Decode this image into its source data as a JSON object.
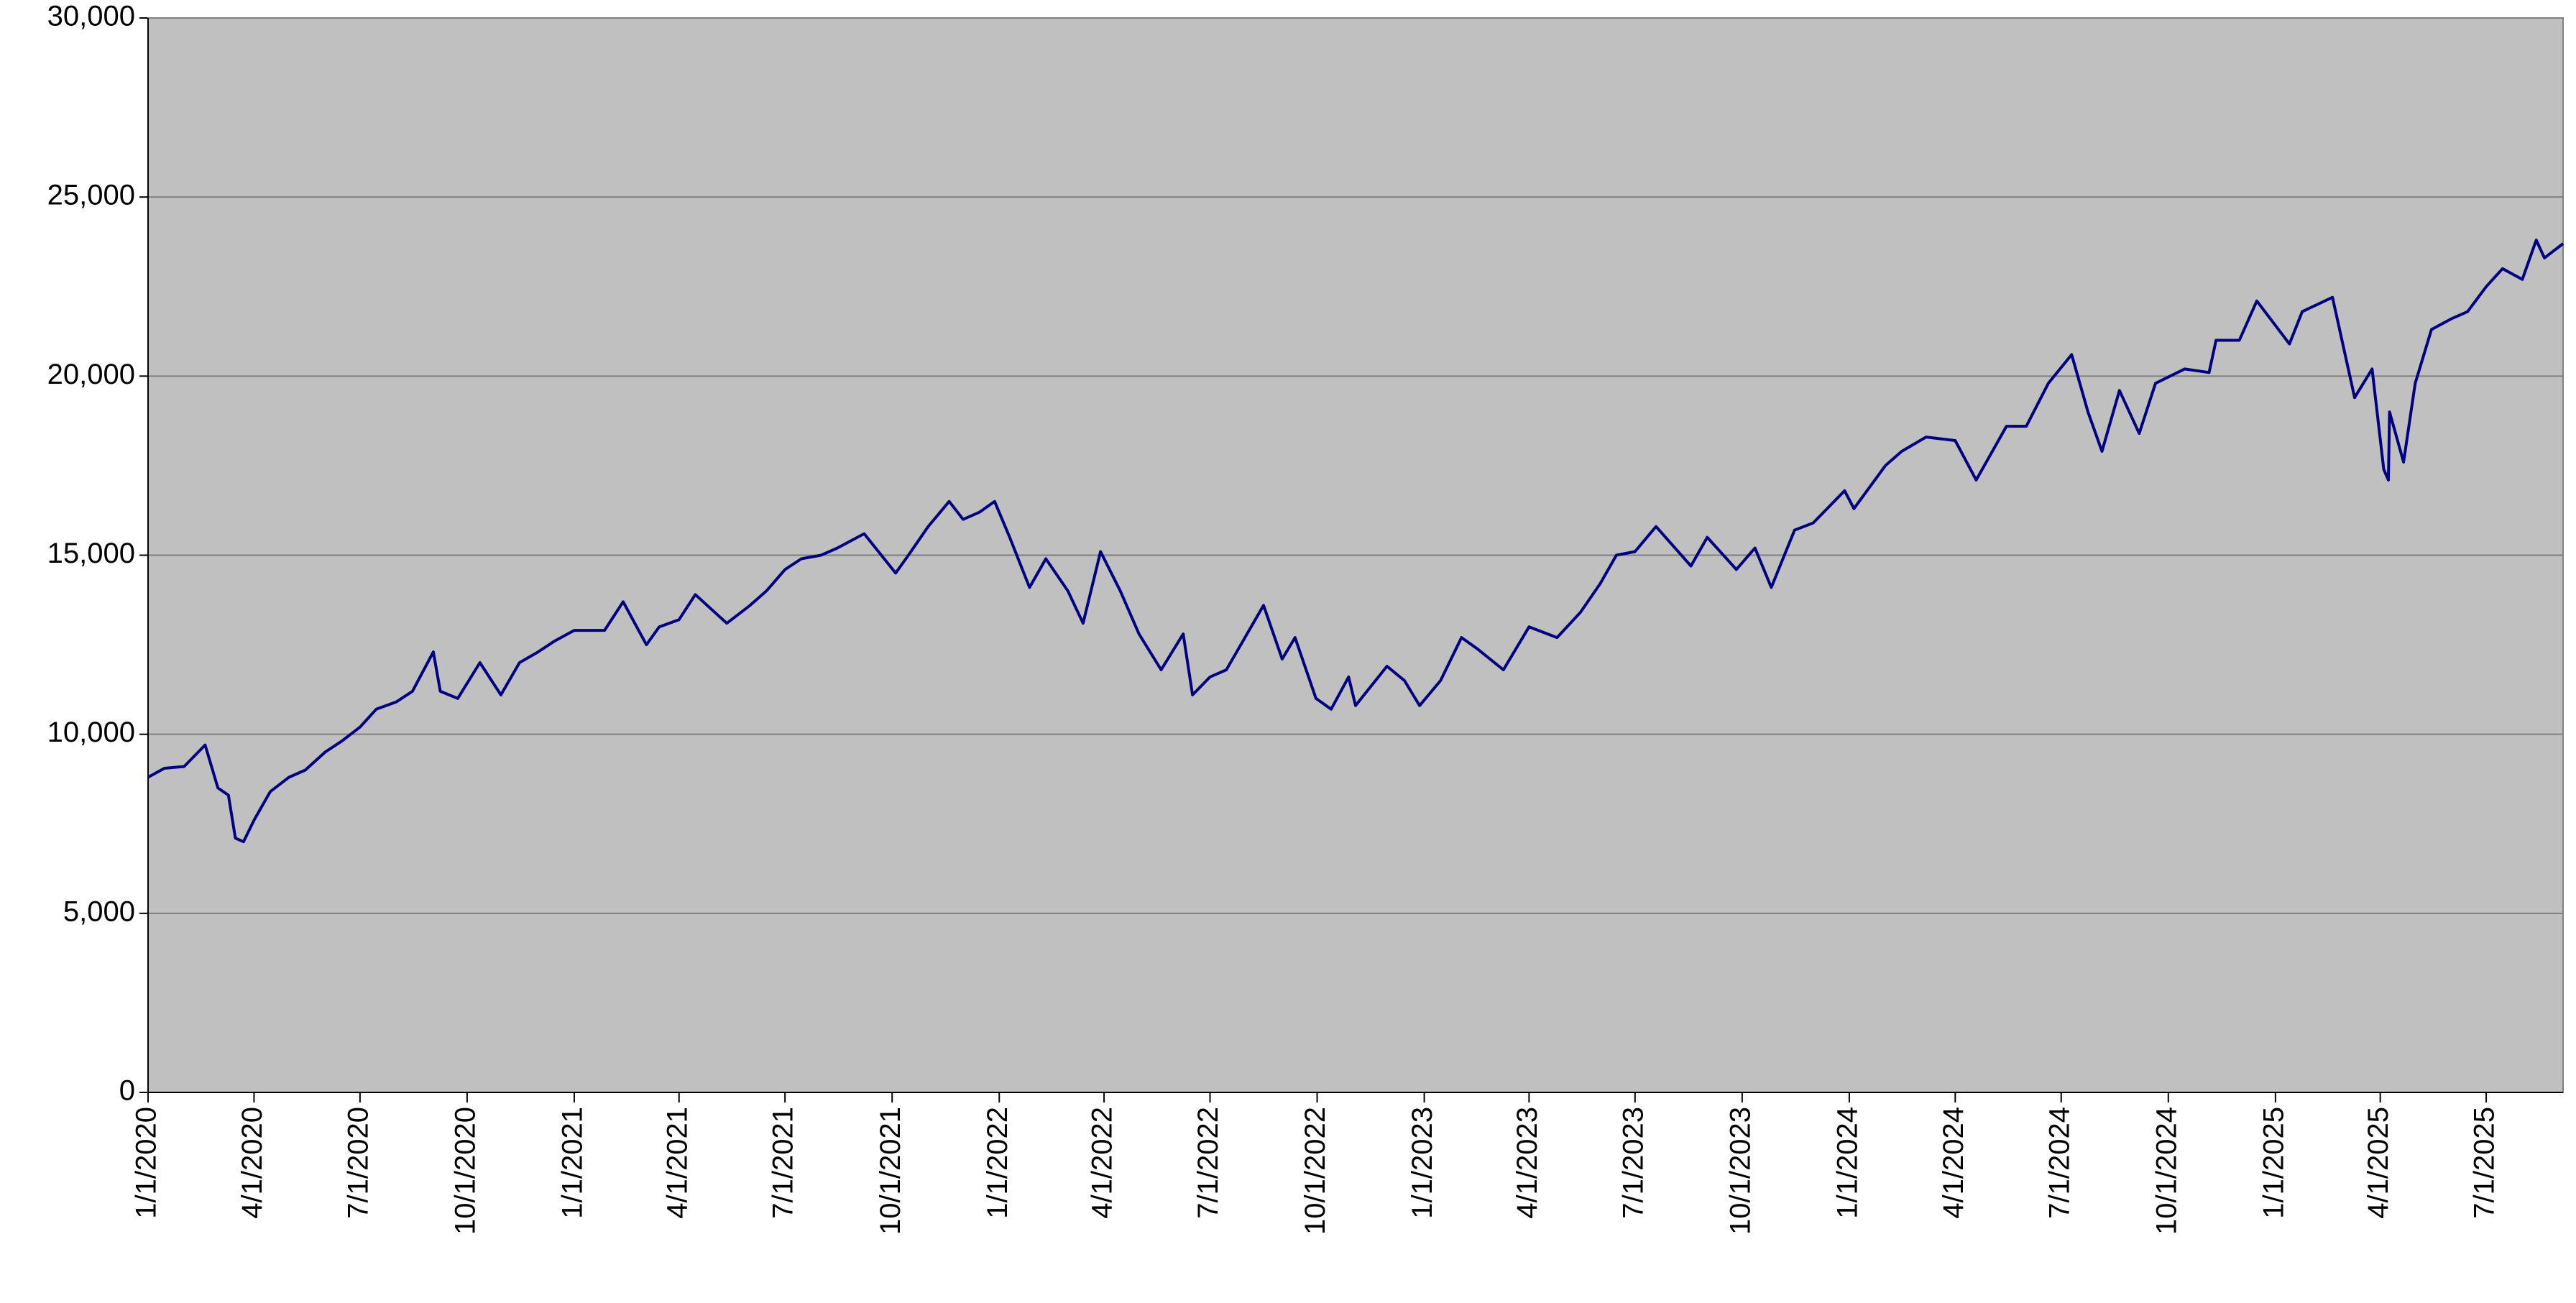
{
  "chart_data": {
    "type": "line",
    "color": "#000080",
    "background": "#c0c0c0",
    "grid": true,
    "x": [
      "1/1/2020",
      "1/15/2020",
      "2/1/2020",
      "2/19/2020",
      "3/1/2020",
      "3/10/2020",
      "3/16/2020",
      "3/23/2020",
      "4/1/2020",
      "4/15/2020",
      "5/1/2020",
      "5/15/2020",
      "6/1/2020",
      "6/15/2020",
      "7/1/2020",
      "7/15/2020",
      "8/1/2020",
      "8/15/2020",
      "9/2/2020",
      "9/8/2020",
      "9/23/2020",
      "10/12/2020",
      "10/30/2020",
      "11/15/2020",
      "12/1/2020",
      "12/15/2020",
      "1/1/2021",
      "1/27/2021",
      "2/12/2021",
      "3/4/2021",
      "3/15/2021",
      "4/1/2021",
      "4/15/2021",
      "5/12/2021",
      "6/1/2021",
      "6/15/2021",
      "7/1/2021",
      "7/15/2021",
      "8/1/2021",
      "8/15/2021",
      "9/7/2021",
      "10/4/2021",
      "10/15/2021",
      "11/1/2021",
      "11/19/2021",
      "12/1/2021",
      "12/15/2021",
      "12/28/2021",
      "1/10/2022",
      "1/27/2022",
      "2/10/2022",
      "3/1/2022",
      "3/14/2022",
      "3/29/2022",
      "4/15/2022",
      "5/1/2022",
      "5/20/2022",
      "6/8/2022",
      "6/16/2022",
      "7/1/2022",
      "7/15/2022",
      "8/16/2022",
      "9/1/2022",
      "9/12/2022",
      "9/30/2022",
      "10/13/2022",
      "10/28/2022",
      "11/3/2022",
      "11/30/2022",
      "12/15/2022",
      "12/28/2022",
      "1/15/2023",
      "2/2/2023",
      "2/15/2023",
      "3/10/2023",
      "4/1/2023",
      "4/25/2023",
      "5/15/2023",
      "6/1/2023",
      "6/15/2023",
      "7/1/2023",
      "7/19/2023",
      "8/18/2023",
      "9/1/2023",
      "9/26/2023",
      "10/12/2023",
      "10/26/2023",
      "11/15/2023",
      "12/1/2023",
      "12/28/2023",
      "1/5/2024",
      "2/1/2024",
      "2/15/2024",
      "3/7/2024",
      "4/1/2024",
      "4/19/2024",
      "5/15/2024",
      "6/1/2024",
      "6/20/2024",
      "7/10/2024",
      "7/24/2024",
      "8/5/2024",
      "8/20/2024",
      "9/6/2024",
      "9/20/2024",
      "10/15/2024",
      "11/5/2024",
      "11/11/2024",
      "12/1/2024",
      "12/16/2024",
      "1/13/2025",
      "1/24/2025",
      "2/19/2025",
      "3/10/2025",
      "3/25/2025",
      "4/4/2025",
      "4/8/2025",
      "4/9/2025",
      "4/21/2025",
      "5/1/2025",
      "5/15/2025",
      "6/1/2025",
      "6/15/2025",
      "7/1/2025",
      "7/15/2025",
      "8/1/2025",
      "8/13/2025",
      "8/20/2025",
      "9/5/2025"
    ],
    "values": [
      8800,
      9050,
      9100,
      9700,
      8500,
      8300,
      7100,
      7000,
      7600,
      8400,
      8800,
      9000,
      9500,
      9800,
      10200,
      10700,
      10900,
      11200,
      12300,
      11200,
      11000,
      12000,
      11100,
      12000,
      12300,
      12600,
      12900,
      12900,
      13700,
      12500,
      13000,
      13200,
      13900,
      13100,
      13600,
      14000,
      14600,
      14900,
      15000,
      15200,
      15600,
      14500,
      15000,
      15800,
      16500,
      16000,
      16200,
      16500,
      15500,
      14100,
      14900,
      14000,
      13100,
      15100,
      14000,
      12800,
      11800,
      12800,
      11100,
      11600,
      11800,
      13600,
      12100,
      12700,
      11000,
      10700,
      11600,
      10800,
      11900,
      11500,
      10800,
      11500,
      12700,
      12400,
      11800,
      13000,
      12700,
      13400,
      14200,
      15000,
      15100,
      15800,
      14700,
      15500,
      14600,
      15200,
      14100,
      15700,
      15900,
      16800,
      16300,
      17500,
      17900,
      18300,
      18200,
      17100,
      18600,
      18600,
      19800,
      20600,
      19000,
      17900,
      19600,
      18400,
      19800,
      20200,
      20100,
      21000,
      21000,
      22100,
      20900,
      21800,
      22200,
      19400,
      20200,
      17400,
      17100,
      19000,
      17600,
      19800,
      21300,
      21600,
      21800,
      22500,
      23000,
      22700,
      23800,
      23300,
      23700
    ],
    "xlim": [
      "1/1/2020",
      "9/5/2025"
    ],
    "xticks": [
      "1/1/2020",
      "4/1/2020",
      "7/1/2020",
      "10/1/2020",
      "1/1/2021",
      "4/1/2021",
      "7/1/2021",
      "10/1/2021",
      "1/1/2022",
      "4/1/2022",
      "7/1/2022",
      "10/1/2022",
      "1/1/2023",
      "4/1/2023",
      "7/1/2023",
      "10/1/2023",
      "1/1/2024",
      "4/1/2024",
      "7/1/2024",
      "10/1/2024",
      "1/1/2025",
      "4/1/2025",
      "7/1/2025"
    ],
    "ylim": [
      0,
      30000
    ],
    "yticks": [
      0,
      {
        "value": 5000,
        "label": "5,000"
      },
      {
        "value": 10000,
        "label": "10,000"
      },
      {
        "value": 15000,
        "label": "15,000"
      },
      {
        "value": 20000,
        "label": "20,000"
      },
      {
        "value": 25000,
        "label": "25,000"
      },
      {
        "value": 30000,
        "label": "30,000"
      }
    ]
  }
}
